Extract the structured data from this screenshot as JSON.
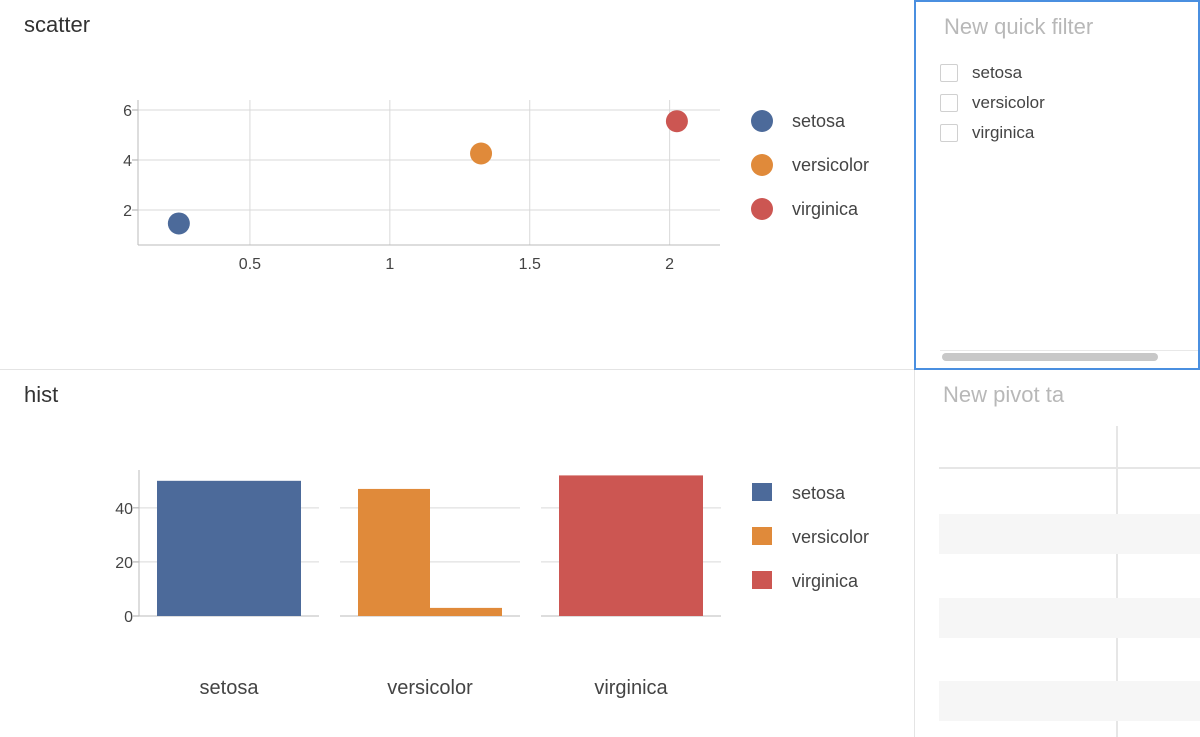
{
  "scatter": {
    "title": "scatter",
    "chart_data": {
      "type": "scatter",
      "series": [
        {
          "name": "setosa",
          "x": [
            0.246
          ],
          "y": [
            1.462
          ]
        },
        {
          "name": "versicolor",
          "x": [
            1.326
          ],
          "y": [
            4.26
          ]
        },
        {
          "name": "virginica",
          "x": [
            2.026
          ],
          "y": [
            5.552
          ]
        }
      ],
      "x_ticks": [
        "0.5",
        "1",
        "1.5",
        "2"
      ],
      "y_ticks": [
        "2",
        "4",
        "6"
      ],
      "xlim": [
        0.1,
        2.18
      ],
      "ylim": [
        0.6,
        6.4
      ],
      "grid": true,
      "legend": "right"
    }
  },
  "hist": {
    "title": "hist",
    "chart_data": {
      "type": "bar",
      "facets": [
        {
          "category": "setosa",
          "bars": [
            50
          ]
        },
        {
          "category": "versicolor",
          "bars": [
            47,
            3
          ]
        },
        {
          "category": "virginica",
          "bars": [
            52
          ]
        }
      ],
      "series_names": [
        "setosa",
        "versicolor",
        "virginica"
      ],
      "y_ticks": [
        "0",
        "20",
        "40"
      ],
      "ylim": [
        0,
        54
      ],
      "grid": true,
      "legend": "right"
    }
  },
  "colors": {
    "setosa": "#4c6a9a",
    "versicolor": "#e08a3a",
    "virginica": "#cc5652"
  },
  "quick_filter": {
    "title": "New quick filter",
    "options": [
      "setosa",
      "versicolor",
      "virginica"
    ]
  },
  "pivot": {
    "title": "New pivot ta"
  }
}
